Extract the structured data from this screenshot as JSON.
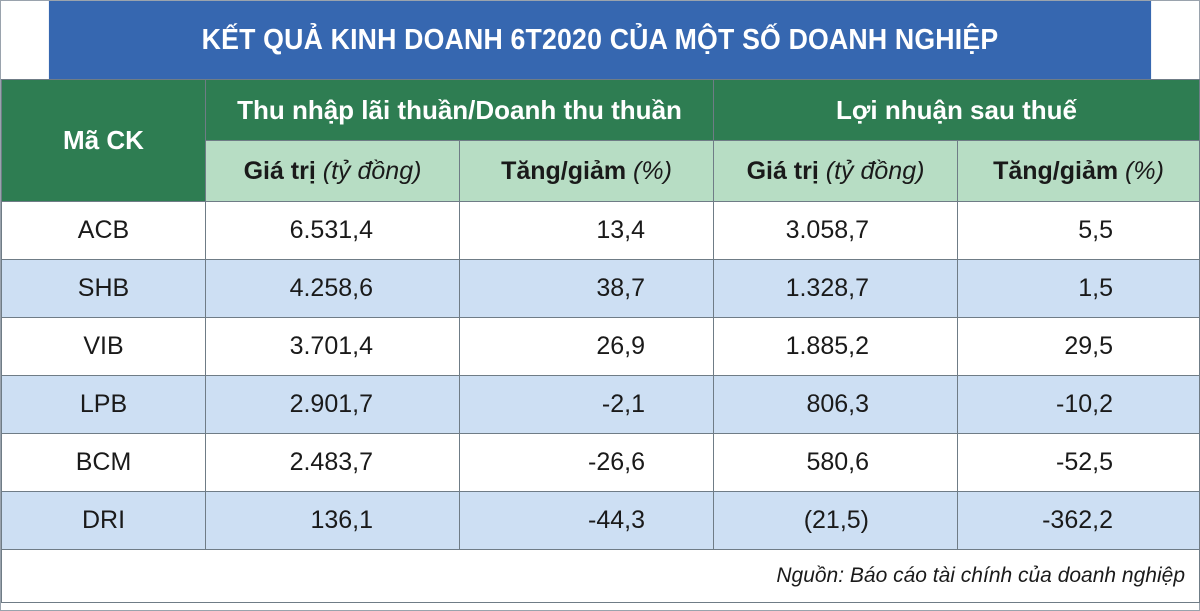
{
  "title": "KẾT QUẢ KINH DOANH 6T2020 CỦA MỘT SỐ DOANH NGHIỆP",
  "headers": {
    "code": "Mã CK",
    "group1": "Thu nhập lãi thuần/Doanh thu thuần",
    "group2": "Lợi nhuận sau thuế",
    "value_label": "Giá trị",
    "value_unit": "(tỷ đồng)",
    "change_label": "Tăng/giảm",
    "change_unit": "(%)"
  },
  "rows": [
    {
      "code": "ACB",
      "revenue": "6.531,4",
      "revenue_change": "13,4",
      "profit": "3.058,7",
      "profit_change": "5,5"
    },
    {
      "code": "SHB",
      "revenue": "4.258,6",
      "revenue_change": "38,7",
      "profit": "1.328,7",
      "profit_change": "1,5"
    },
    {
      "code": "VIB",
      "revenue": "3.701,4",
      "revenue_change": "26,9",
      "profit": "1.885,2",
      "profit_change": "29,5"
    },
    {
      "code": "LPB",
      "revenue": "2.901,7",
      "revenue_change": "-2,1",
      "profit": "806,3",
      "profit_change": "-10,2"
    },
    {
      "code": "BCM",
      "revenue": "2.483,7",
      "revenue_change": "-26,6",
      "profit": "580,6",
      "profit_change": "-52,5"
    },
    {
      "code": "DRI",
      "revenue": "136,1",
      "revenue_change": "-44,3",
      "profit": "(21,5)",
      "profit_change": "-362,2"
    }
  ],
  "source": "Nguồn: Báo cáo tài chính của doanh nghiệp",
  "colors": {
    "title_bg": "#3667b0",
    "header_dark": "#2e7d52",
    "header_light": "#b7ddc4",
    "row_alt": "#cddff3"
  }
}
